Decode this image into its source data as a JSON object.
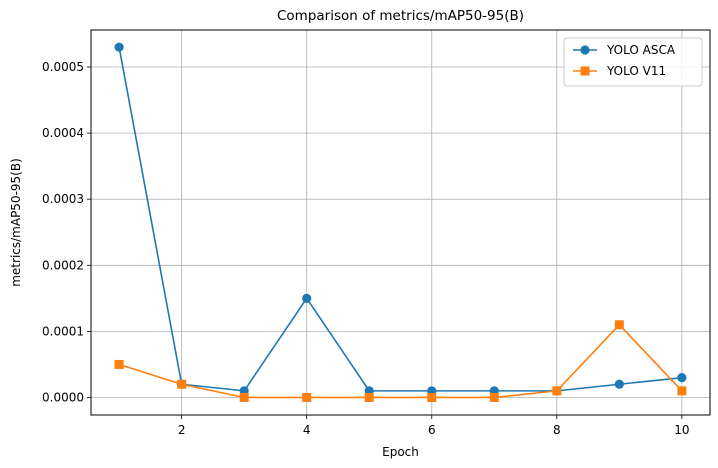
{
  "chart_data": {
    "type": "line",
    "title": "Comparison of metrics/mAP50-95(B)",
    "xlabel": "Epoch",
    "ylabel": "metrics/mAP50-95(B)",
    "xlim": [
      0.55,
      10.45
    ],
    "ylim": [
      -2.65e-05,
      0.000556
    ],
    "x_ticks": [
      2,
      4,
      6,
      8,
      10
    ],
    "x_tick_labels": [
      "2",
      "4",
      "6",
      "8",
      "10"
    ],
    "y_ticks": [
      0,
      0.0001,
      0.0002,
      0.0003,
      0.0004,
      0.0005
    ],
    "y_tick_labels": [
      "0.0000",
      "0.0001",
      "0.0002",
      "0.0003",
      "0.0004",
      "0.0005"
    ],
    "grid": true,
    "legend_position": "top-right",
    "x": [
      1,
      2,
      3,
      4,
      5,
      6,
      7,
      8,
      9,
      10
    ],
    "series": [
      {
        "name": "YOLO ASCA",
        "color": "#1f77b4",
        "marker": "circle",
        "values": [
          0.00053,
          2e-05,
          1e-05,
          0.00015,
          1e-05,
          1e-05,
          1e-05,
          1e-05,
          2e-05,
          3e-05
        ]
      },
      {
        "name": "YOLO V11",
        "color": "#ff7f0e",
        "marker": "square",
        "values": [
          5e-05,
          2e-05,
          0.0,
          0.0,
          0.0,
          0.0,
          0.0,
          1e-05,
          0.00011,
          1e-05
        ]
      }
    ]
  }
}
